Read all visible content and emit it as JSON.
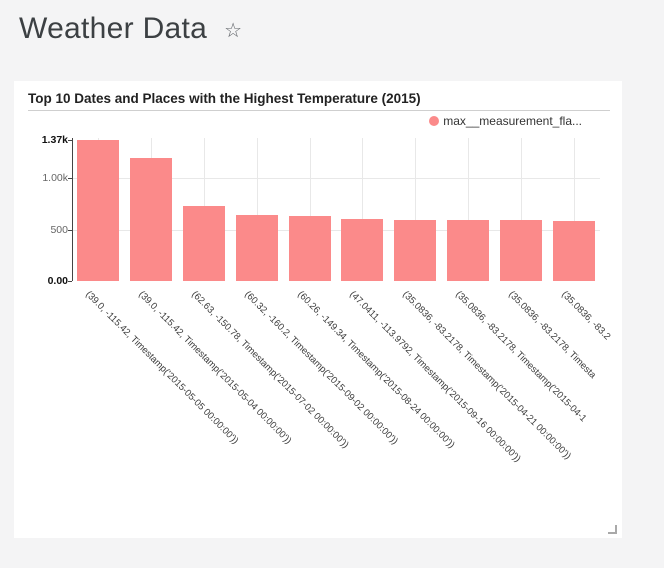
{
  "page": {
    "background": "#f4f4f5"
  },
  "header": {
    "title": "Weather Data",
    "star_icon": "☆"
  },
  "card": {
    "title": "Top 10 Dates and Places with the Highest Temperature (2015)",
    "legend": {
      "label": "max__measurement_fla...",
      "marker_color": "#fb8a8a"
    }
  },
  "chart_data": {
    "type": "bar",
    "title": "Top 10 Dates and Places with the Highest Temperature (2015)",
    "series": [
      {
        "name": "max__measurement_fla...",
        "values": [
          1370,
          1198,
          729,
          641,
          634,
          600,
          590,
          589,
          588,
          587
        ]
      }
    ],
    "categories": [
      "(39.0, -115.42, Timestamp('2015-05-05 00:00:00'))",
      "(39.0, -115.42, Timestamp('2015-05-04 00:00:00'))",
      "(62.63, -150.78, Timestamp('2015-07-02 00:00:00'))",
      "(60.32, -160.2, Timestamp('2015-09-02 00:00:00'))",
      "(60.26, -149.34, Timestamp('2015-08-24 00:00:00'))",
      "(47.0411, -113.9792, Timestamp('2015-09-16 00:00:00'))",
      "(35.0836, -83.2178, Timestamp('2015-04-21 00:00:00'))",
      "(35.0836, -83.2178, Timestamp('2015-04-1",
      "(35.0836, -83.2178, Timesta",
      "(35.0836, -83.2"
    ],
    "values": [
      1370,
      1198,
      729,
      641,
      634,
      600,
      590,
      589,
      588,
      587
    ],
    "bar_color": "#fb8a8a",
    "xlabel": "",
    "ylabel": "",
    "ylim": [
      0,
      1370
    ],
    "yticks": [
      {
        "label": "0.00",
        "value": 0,
        "bold": true,
        "gridline": false
      },
      {
        "label": "500",
        "value": 500,
        "bold": false,
        "gridline": true
      },
      {
        "label": "1.00k",
        "value": 1000,
        "bold": false,
        "gridline": true
      },
      {
        "label": "1.37k",
        "value": 1370,
        "bold": true,
        "gridline": false
      }
    ],
    "x_label_rotation_deg": 45,
    "grid": true,
    "legend_position": "top-right"
  },
  "colors": {
    "grid": "#e8e8e8",
    "axis": "#444444",
    "x_label": "#3a3a3a"
  }
}
